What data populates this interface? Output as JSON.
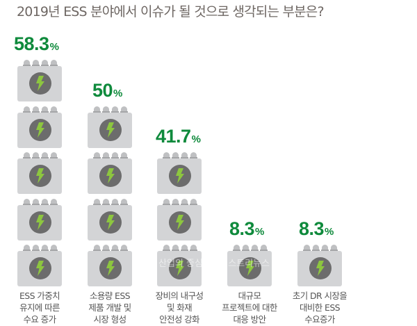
{
  "title": "2019년 ESS 분야에서 이슈가 될 것으로 생각되는 부분은?",
  "colors": {
    "value_green": "#0f8a3c",
    "battery_body": "#d3d4d6",
    "circle": "#6c6c6c",
    "bolt": "#8dc63f",
    "title_gray": "#6e6763"
  },
  "icon": "battery-bolt-icon",
  "watermark": "산업의 중심 · 인더스트리뉴스",
  "chart_data": {
    "type": "bar",
    "style": "pictograph (stacked battery icons)",
    "title": "2019년 ESS 분야에서 이슈가 될 것으로 생각되는 부분은?",
    "categories": [
      "ESS 가중치 유지에 따른 수요 증가",
      "소용량 ESS 제품 개발 및 시장 형성",
      "장비의 내구성 및 화재 안전성 강화",
      "대규모 프로젝트에 대한 대응 방안",
      "초기 DR 시장을 대비한 ESS 수요증가"
    ],
    "values": [
      58.3,
      50,
      41.7,
      8.3,
      8.3
    ],
    "unit": "%",
    "icon_counts": [
      5,
      4,
      3,
      1,
      1
    ],
    "xlabel": "",
    "ylabel": "",
    "grid": false,
    "legend": "none"
  },
  "columns": [
    {
      "value": "58.3",
      "unit": "%",
      "icons": 5,
      "label_lines": [
        "ESS 가중치",
        "유지에 따른",
        "수요 증가"
      ]
    },
    {
      "value": "50",
      "unit": "%",
      "icons": 4,
      "label_lines": [
        "소용량 ESS",
        "제품 개발 및",
        "시장 형성"
      ]
    },
    {
      "value": "41.7",
      "unit": "%",
      "icons": 3,
      "label_lines": [
        "장비의 내구성",
        "및 화재",
        "안전성 강화"
      ]
    },
    {
      "value": "8.3",
      "unit": "%",
      "icons": 1,
      "label_lines": [
        "대규모",
        "프로젝트에 대한",
        "대응 방안"
      ]
    },
    {
      "value": "8.3",
      "unit": "%",
      "icons": 1,
      "label_lines": [
        "초기 DR 시장을",
        "대비한 ESS",
        "수요증가"
      ]
    }
  ]
}
